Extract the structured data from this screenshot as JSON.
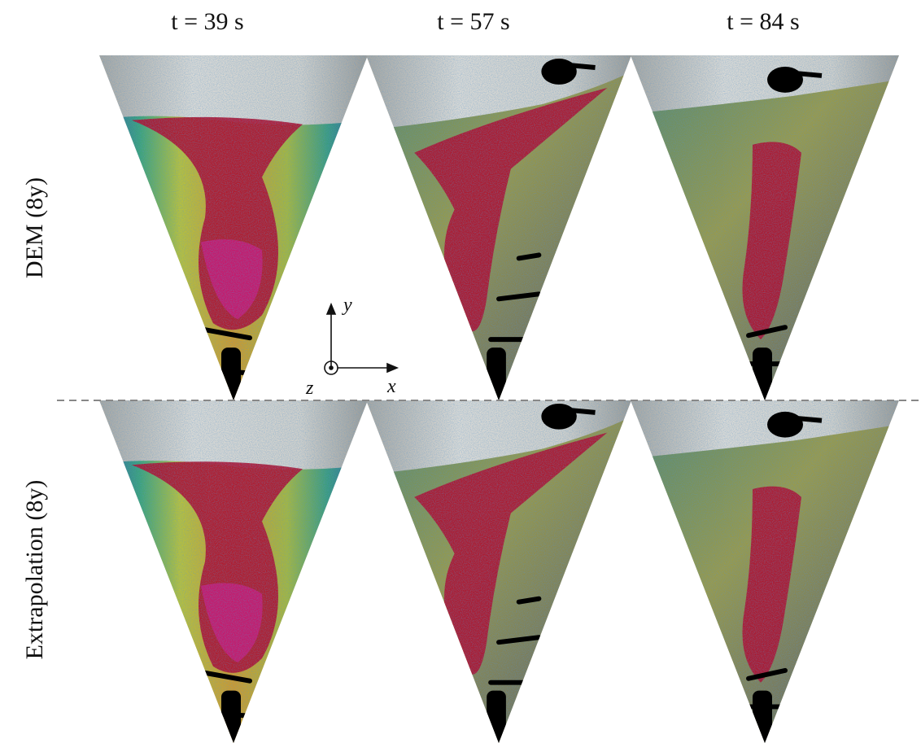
{
  "columns": {
    "titles": [
      "t = 39 s",
      "t = 57 s",
      "t = 84 s"
    ]
  },
  "rows": {
    "labels": [
      "DEM (8y)",
      "Extrapolation (8y)"
    ]
  },
  "axes": {
    "x": "x",
    "y": "y",
    "z": "z"
  }
}
